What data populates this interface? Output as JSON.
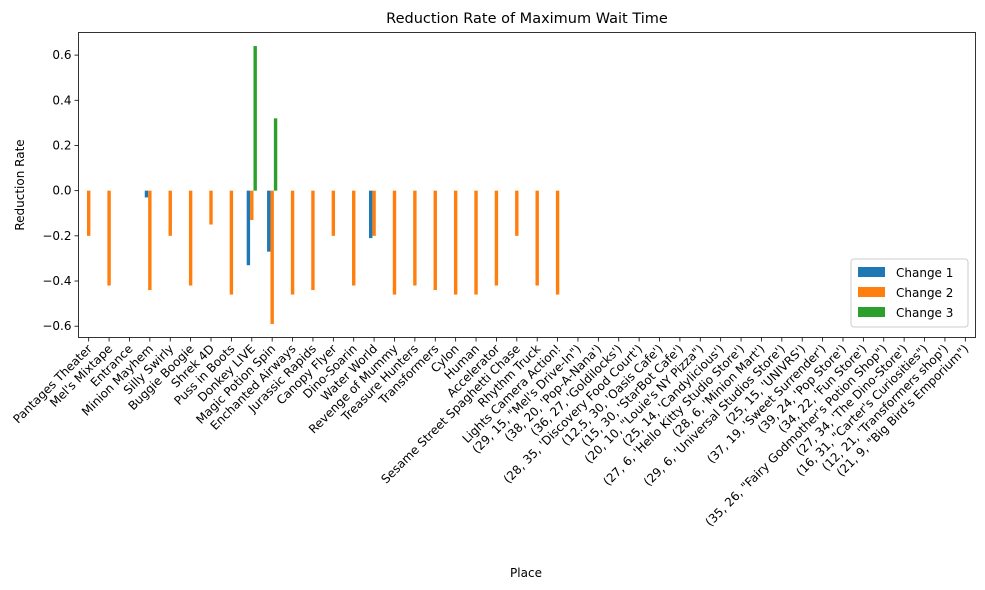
{
  "chart_data": {
    "type": "bar",
    "title": "Reduction Rate of Maximum Wait Time",
    "xlabel": "Place",
    "ylabel": "Reduction Rate",
    "ylim": [
      -0.65,
      0.7
    ],
    "yticks": [
      -0.6,
      -0.4,
      -0.2,
      0.0,
      0.2,
      0.4,
      0.6
    ],
    "ytick_labels": [
      "−0.6",
      "−0.4",
      "−0.2",
      "0.0",
      "0.2",
      "0.4",
      "0.6"
    ],
    "legend_position": "lower-right",
    "grid": false,
    "categories": [
      "Pantages Theater",
      "Mel's Mixtape",
      "Entrance",
      "Minion Mayhem",
      "Silly Swirly",
      "Buggie Boogie",
      "Shrek 4D",
      "Puss in Boots",
      "Donkey LIVE",
      "Magic Potion Spin",
      "Enchanted Airways",
      "Jurassic Rapids",
      "Canopy Flyer",
      "Dino-Soarin",
      "Water World",
      "Revenge of Mummy",
      "Treasure Hunters",
      "Transformers",
      "Cylon",
      "Human",
      "Accelerator",
      "Sesame Street Spaghetti Chase",
      "Rhythm Truck",
      "Lights Camera Action!",
      "(29, 15, \"Mel's Drive-In\")",
      "(38, 20, 'Pop-A-Nana')",
      "(36, 27, 'Goldilocks')",
      "(28, 35, 'Discovery Food Court')",
      "(12.5, 30, 'Oasis Cafe')",
      "(15, 30, 'StarBot Cafe')",
      "(20, 10, \"Louie's NY Pizza\")",
      "(25, 14, 'Candylicious')",
      "(27, 6, 'Hello Kitty Studio Store')",
      "(28, 6, 'Minion Mart')",
      "(29, 6, 'Universal Studios Store')",
      "(25, 15, 'UNIVRS')",
      "(37, 19, 'Sweet Surrender')",
      "(39, 24, 'Pop Store')",
      "(34, 22, 'Fun Store')",
      "(35, 26, \"Fairy Godmother's Potion Shop\")",
      "(27, 34, 'The Dino-Store')",
      "(16, 31, \"Carter's Curiosities\")",
      "(12, 21, 'Transformers shop')",
      "(21, 9, \"Big Bird's Emporium\")"
    ],
    "series": [
      {
        "name": "Change 1",
        "color": "#1f77b4",
        "values": [
          0,
          0,
          0,
          -0.03,
          0,
          0,
          0,
          0,
          -0.33,
          -0.27,
          0,
          0,
          0,
          0,
          -0.21,
          0,
          0,
          0,
          0,
          0,
          0,
          0,
          0,
          0,
          null,
          null,
          null,
          null,
          null,
          null,
          null,
          null,
          null,
          null,
          null,
          null,
          null,
          null,
          null,
          null,
          null,
          null,
          null,
          null
        ]
      },
      {
        "name": "Change 2",
        "color": "#ff7f0e",
        "values": [
          -0.2,
          -0.42,
          0,
          -0.44,
          -0.2,
          -0.42,
          -0.15,
          -0.46,
          -0.13,
          -0.59,
          -0.46,
          -0.44,
          -0.2,
          -0.42,
          -0.2,
          -0.46,
          -0.42,
          -0.44,
          -0.46,
          -0.46,
          -0.42,
          -0.2,
          -0.42,
          -0.46,
          null,
          null,
          null,
          null,
          null,
          null,
          null,
          null,
          null,
          null,
          null,
          null,
          null,
          null,
          null,
          null,
          null,
          null,
          null,
          null
        ]
      },
      {
        "name": "Change 3",
        "color": "#2ca02c",
        "values": [
          0,
          0,
          0,
          0,
          0,
          0,
          0,
          0,
          0.64,
          0.32,
          0,
          0,
          0,
          0,
          0,
          0,
          0,
          0,
          0,
          0,
          0,
          0,
          0,
          0,
          null,
          null,
          null,
          null,
          null,
          null,
          null,
          null,
          null,
          null,
          null,
          null,
          null,
          null,
          null,
          null,
          null,
          null,
          null,
          null
        ]
      }
    ]
  }
}
